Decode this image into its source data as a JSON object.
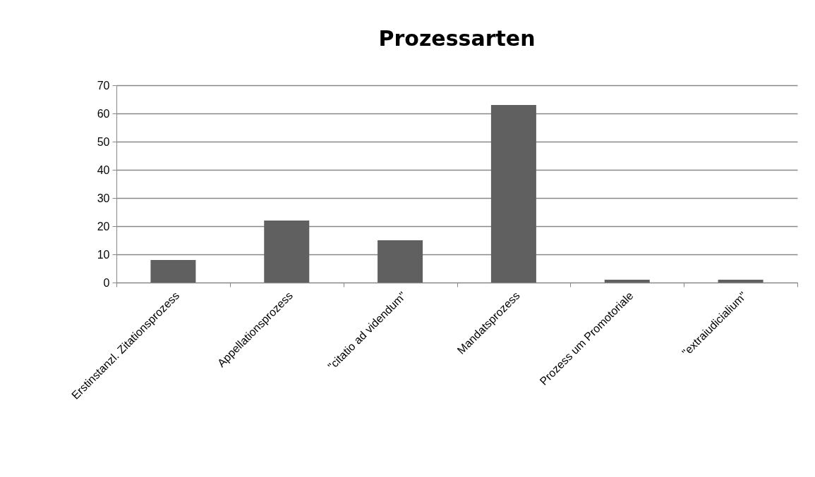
{
  "chart_data": {
    "type": "bar",
    "title": "Prozessarten",
    "categories": [
      "Erstinstanzl. Zitationsprozess",
      "Appellationsprozess",
      "\"citatio ad videndum\"",
      "Mandatsprozess",
      "Prozess um  Promotoriale",
      "\"extraiudicialium\""
    ],
    "values": [
      8,
      22,
      15,
      63,
      1,
      1
    ],
    "color": "#606060",
    "ylim": [
      0,
      70
    ],
    "yticks": [
      0,
      10,
      20,
      30,
      40,
      50,
      60,
      70
    ],
    "grid": true
  }
}
